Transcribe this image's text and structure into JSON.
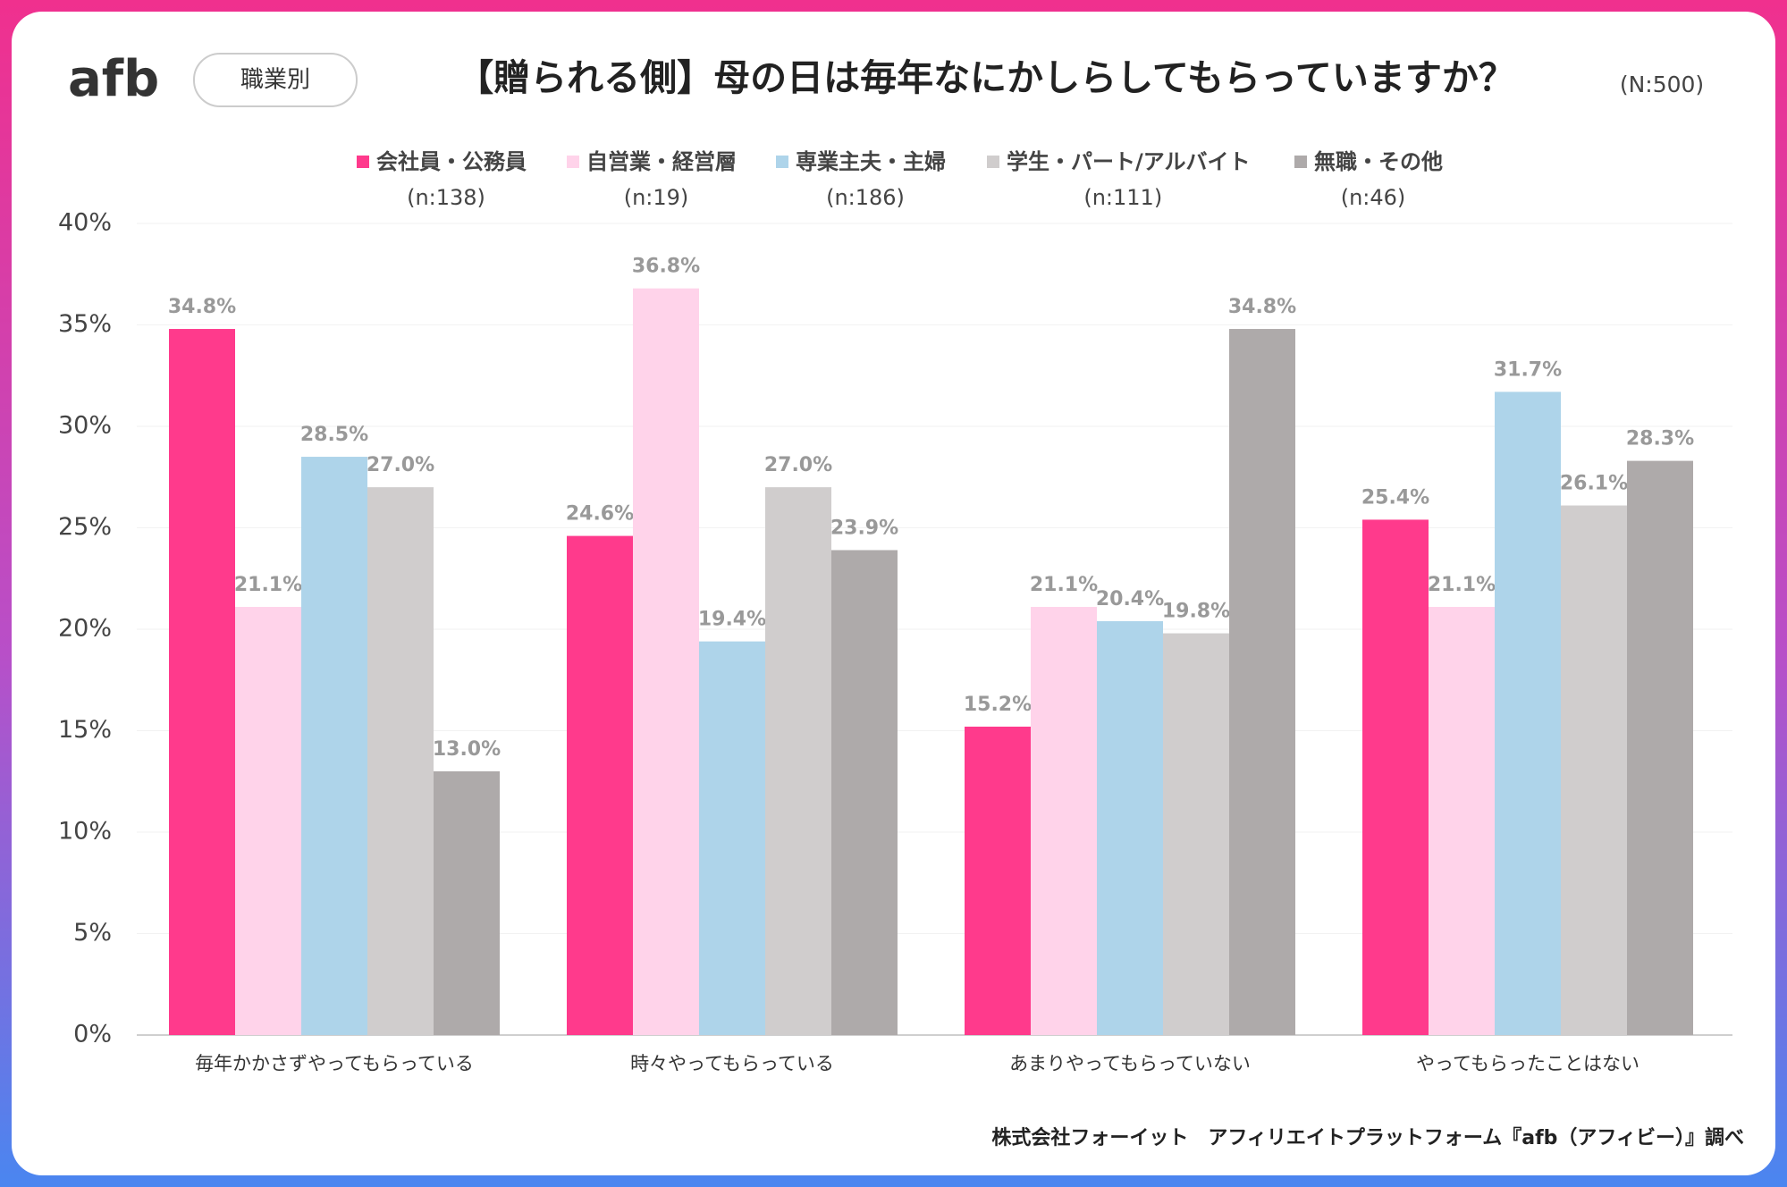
{
  "header": {
    "logo": "afb",
    "badge": "職業別",
    "title": "【贈られる側】母の日は毎年なにかしらしてもらっていますか？",
    "sample_size": "(N:500)"
  },
  "chart_data": {
    "type": "bar",
    "categories": [
      "毎年かかさずやってもらっている",
      "時々やってもらっている",
      "あまりやってもらっていない",
      "やってもらったことはない"
    ],
    "series": [
      {
        "name": "会社員・公務員",
        "n_label": "(n:138)",
        "color": "#ff3a8c",
        "values": [
          34.8,
          24.6,
          15.2,
          25.4
        ],
        "value_labels": [
          "34.8%",
          "24.6%",
          "15.2%",
          "25.4%"
        ]
      },
      {
        "name": "自営業・経営層",
        "n_label": "(n:19)",
        "color": "#ffd3ea",
        "values": [
          21.1,
          36.8,
          21.1,
          21.1
        ],
        "value_labels": [
          "21.1%",
          "36.8%",
          "21.1%",
          "21.1%"
        ]
      },
      {
        "name": "専業主夫・主婦",
        "n_label": "(n:186)",
        "color": "#aed4ea",
        "values": [
          28.5,
          19.4,
          20.4,
          31.7
        ],
        "value_labels": [
          "28.5%",
          "19.4%",
          "20.4%",
          "31.7%"
        ]
      },
      {
        "name": "学生・パート/アルバイト",
        "n_label": "(n:111)",
        "color": "#d0cdcd",
        "values": [
          27.0,
          27.0,
          19.8,
          26.1
        ],
        "value_labels": [
          "27.0%",
          "27.0%",
          "19.8%",
          "26.1%"
        ]
      },
      {
        "name": "無職・その他",
        "n_label": "(n:46)",
        "color": "#aeaaaa",
        "values": [
          13.0,
          23.9,
          34.8,
          28.3
        ],
        "value_labels": [
          "13.0%",
          "23.9%",
          "34.8%",
          "28.3%"
        ]
      }
    ],
    "ylim": [
      0,
      40
    ],
    "yticks": [
      {
        "value": 0,
        "label": "0%"
      },
      {
        "value": 5,
        "label": "5%"
      },
      {
        "value": 10,
        "label": "10%"
      },
      {
        "value": 15,
        "label": "15%"
      },
      {
        "value": 20,
        "label": "20%"
      },
      {
        "value": 25,
        "label": "25%"
      },
      {
        "value": 30,
        "label": "30%"
      },
      {
        "value": 35,
        "label": "35%"
      },
      {
        "value": 40,
        "label": "40%"
      }
    ],
    "grid": true,
    "legend_position": "top"
  },
  "footer": {
    "source": "株式会社フォーイット　アフィリエイトプラットフォーム『afb（アフィビー）』調べ"
  }
}
